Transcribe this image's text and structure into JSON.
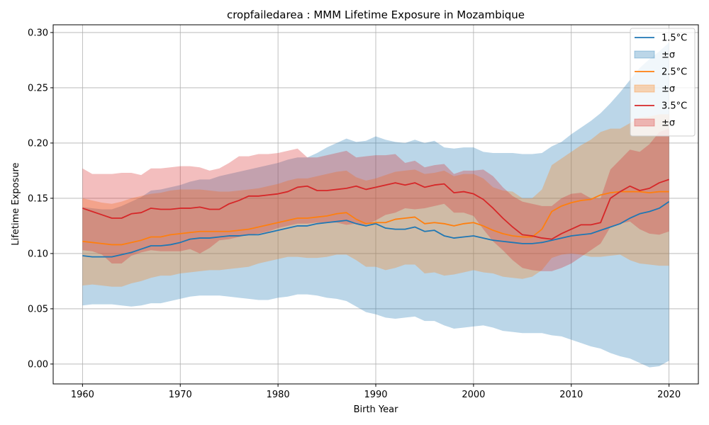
{
  "chart_data": {
    "type": "line",
    "title": "cropfailedarea : MMM Lifetime Exposure in Mozambique",
    "xlabel": "Birth Year",
    "ylabel": "Lifetime Exposure",
    "xlim": [
      1957,
      2023
    ],
    "ylim": [
      -0.018,
      0.307
    ],
    "xticks": [
      1960,
      1970,
      1980,
      1990,
      2000,
      2010,
      2020
    ],
    "yticks": [
      0.0,
      0.05,
      0.1,
      0.15,
      0.2,
      0.25,
      0.3
    ],
    "ytick_labels": [
      "0.00",
      "0.05",
      "0.10",
      "0.15",
      "0.20",
      "0.25",
      "0.30"
    ],
    "grid": true,
    "legend_position": "top-right",
    "x_start": 1960,
    "series": [
      {
        "name": "1.5°C",
        "band_name": "±σ",
        "color": "#1f77b4",
        "band_color": "#1f77b4",
        "mean": [
          0.098,
          0.097,
          0.097,
          0.097,
          0.099,
          0.101,
          0.104,
          0.107,
          0.107,
          0.108,
          0.11,
          0.113,
          0.114,
          0.114,
          0.115,
          0.116,
          0.116,
          0.117,
          0.117,
          0.119,
          0.121,
          0.123,
          0.125,
          0.125,
          0.127,
          0.128,
          0.129,
          0.13,
          0.127,
          0.125,
          0.127,
          0.123,
          0.122,
          0.122,
          0.124,
          0.12,
          0.121,
          0.116,
          0.114,
          0.115,
          0.116,
          0.114,
          0.112,
          0.111,
          0.11,
          0.109,
          0.109,
          0.11,
          0.112,
          0.114,
          0.116,
          0.117,
          0.118,
          0.121,
          0.124,
          0.127,
          0.132,
          0.136,
          0.138,
          0.141,
          0.147
        ],
        "upper": [
          0.142,
          0.141,
          0.14,
          0.14,
          0.143,
          0.147,
          0.151,
          0.157,
          0.158,
          0.16,
          0.162,
          0.165,
          0.167,
          0.167,
          0.17,
          0.172,
          0.174,
          0.176,
          0.178,
          0.18,
          0.182,
          0.185,
          0.187,
          0.187,
          0.191,
          0.196,
          0.2,
          0.204,
          0.201,
          0.202,
          0.206,
          0.203,
          0.201,
          0.2,
          0.203,
          0.2,
          0.202,
          0.196,
          0.195,
          0.196,
          0.196,
          0.192,
          0.191,
          0.191,
          0.191,
          0.19,
          0.19,
          0.191,
          0.197,
          0.201,
          0.208,
          0.214,
          0.22,
          0.227,
          0.236,
          0.246,
          0.257,
          0.268,
          0.276,
          0.283,
          0.291
        ],
        "lower": [
          0.053,
          0.054,
          0.054,
          0.054,
          0.053,
          0.052,
          0.053,
          0.055,
          0.055,
          0.057,
          0.059,
          0.061,
          0.062,
          0.062,
          0.062,
          0.061,
          0.06,
          0.059,
          0.058,
          0.058,
          0.06,
          0.061,
          0.063,
          0.063,
          0.062,
          0.06,
          0.059,
          0.057,
          0.052,
          0.047,
          0.045,
          0.042,
          0.041,
          0.042,
          0.043,
          0.039,
          0.039,
          0.035,
          0.032,
          0.033,
          0.034,
          0.035,
          0.033,
          0.03,
          0.029,
          0.028,
          0.028,
          0.028,
          0.026,
          0.025,
          0.022,
          0.019,
          0.016,
          0.014,
          0.01,
          0.007,
          0.005,
          0.001,
          -0.003,
          -0.002,
          0.003
        ]
      },
      {
        "name": "2.5°C",
        "band_name": "±σ",
        "color": "#ff7f0e",
        "band_color": "#ff7f0e",
        "mean": [
          0.111,
          0.11,
          0.109,
          0.108,
          0.108,
          0.11,
          0.112,
          0.115,
          0.115,
          0.117,
          0.118,
          0.119,
          0.12,
          0.12,
          0.12,
          0.12,
          0.121,
          0.122,
          0.124,
          0.126,
          0.128,
          0.13,
          0.132,
          0.132,
          0.133,
          0.134,
          0.136,
          0.137,
          0.131,
          0.127,
          0.128,
          0.128,
          0.131,
          0.132,
          0.133,
          0.127,
          0.128,
          0.127,
          0.125,
          0.127,
          0.128,
          0.125,
          0.121,
          0.118,
          0.116,
          0.115,
          0.115,
          0.122,
          0.138,
          0.143,
          0.146,
          0.148,
          0.149,
          0.153,
          0.155,
          0.156,
          0.156,
          0.156,
          0.155,
          0.156,
          0.156
        ],
        "upper": [
          0.15,
          0.148,
          0.146,
          0.145,
          0.147,
          0.15,
          0.152,
          0.154,
          0.155,
          0.157,
          0.158,
          0.158,
          0.158,
          0.157,
          0.156,
          0.156,
          0.157,
          0.158,
          0.159,
          0.161,
          0.163,
          0.166,
          0.168,
          0.168,
          0.17,
          0.172,
          0.174,
          0.175,
          0.169,
          0.166,
          0.168,
          0.171,
          0.174,
          0.175,
          0.176,
          0.172,
          0.173,
          0.175,
          0.17,
          0.172,
          0.172,
          0.168,
          0.16,
          0.157,
          0.156,
          0.15,
          0.15,
          0.158,
          0.18,
          0.186,
          0.192,
          0.198,
          0.203,
          0.21,
          0.213,
          0.213,
          0.218,
          0.223,
          0.224,
          0.226,
          0.226
        ],
        "lower": [
          0.071,
          0.072,
          0.071,
          0.07,
          0.07,
          0.073,
          0.075,
          0.078,
          0.08,
          0.08,
          0.082,
          0.083,
          0.084,
          0.085,
          0.085,
          0.086,
          0.087,
          0.088,
          0.091,
          0.093,
          0.095,
          0.097,
          0.097,
          0.096,
          0.096,
          0.097,
          0.099,
          0.099,
          0.094,
          0.088,
          0.088,
          0.085,
          0.087,
          0.09,
          0.09,
          0.082,
          0.083,
          0.08,
          0.081,
          0.083,
          0.085,
          0.083,
          0.082,
          0.079,
          0.078,
          0.077,
          0.079,
          0.085,
          0.096,
          0.099,
          0.1,
          0.099,
          0.097,
          0.097,
          0.098,
          0.099,
          0.094,
          0.091,
          0.09,
          0.089,
          0.089
        ]
      },
      {
        "name": "3.5°C",
        "band_name": "±σ",
        "color": "#d62728",
        "band_color": "#d62728",
        "mean": [
          0.141,
          0.138,
          0.135,
          0.132,
          0.132,
          0.136,
          0.137,
          0.141,
          0.14,
          0.14,
          0.141,
          0.141,
          0.142,
          0.14,
          0.14,
          0.145,
          0.148,
          0.152,
          0.152,
          0.153,
          0.154,
          0.156,
          0.16,
          0.161,
          0.157,
          0.157,
          0.158,
          0.159,
          0.161,
          0.158,
          0.16,
          0.162,
          0.164,
          0.162,
          0.164,
          0.16,
          0.162,
          0.163,
          0.155,
          0.156,
          0.154,
          0.149,
          0.141,
          0.132,
          0.124,
          0.117,
          0.116,
          0.114,
          0.113,
          0.118,
          0.122,
          0.126,
          0.126,
          0.128,
          0.15,
          0.156,
          0.161,
          0.157,
          0.159,
          0.164,
          0.167
        ],
        "upper": [
          0.177,
          0.172,
          0.172,
          0.172,
          0.173,
          0.173,
          0.171,
          0.177,
          0.177,
          0.178,
          0.179,
          0.179,
          0.178,
          0.175,
          0.177,
          0.182,
          0.188,
          0.188,
          0.19,
          0.19,
          0.191,
          0.193,
          0.195,
          0.187,
          0.187,
          0.189,
          0.191,
          0.193,
          0.187,
          0.188,
          0.189,
          0.189,
          0.19,
          0.182,
          0.184,
          0.178,
          0.18,
          0.181,
          0.172,
          0.175,
          0.175,
          0.176,
          0.17,
          0.16,
          0.152,
          0.147,
          0.145,
          0.143,
          0.143,
          0.15,
          0.154,
          0.155,
          0.15,
          0.15,
          0.176,
          0.185,
          0.194,
          0.192,
          0.199,
          0.21,
          0.213
        ],
        "lower": [
          0.103,
          0.102,
          0.099,
          0.091,
          0.091,
          0.098,
          0.101,
          0.103,
          0.102,
          0.102,
          0.102,
          0.104,
          0.1,
          0.105,
          0.112,
          0.113,
          0.115,
          0.117,
          0.118,
          0.12,
          0.123,
          0.125,
          0.127,
          0.127,
          0.128,
          0.128,
          0.128,
          0.126,
          0.127,
          0.126,
          0.13,
          0.135,
          0.137,
          0.141,
          0.14,
          0.141,
          0.143,
          0.145,
          0.137,
          0.137,
          0.134,
          0.122,
          0.111,
          0.103,
          0.094,
          0.087,
          0.085,
          0.084,
          0.084,
          0.087,
          0.091,
          0.097,
          0.103,
          0.109,
          0.124,
          0.127,
          0.129,
          0.122,
          0.118,
          0.117,
          0.12
        ]
      }
    ]
  }
}
